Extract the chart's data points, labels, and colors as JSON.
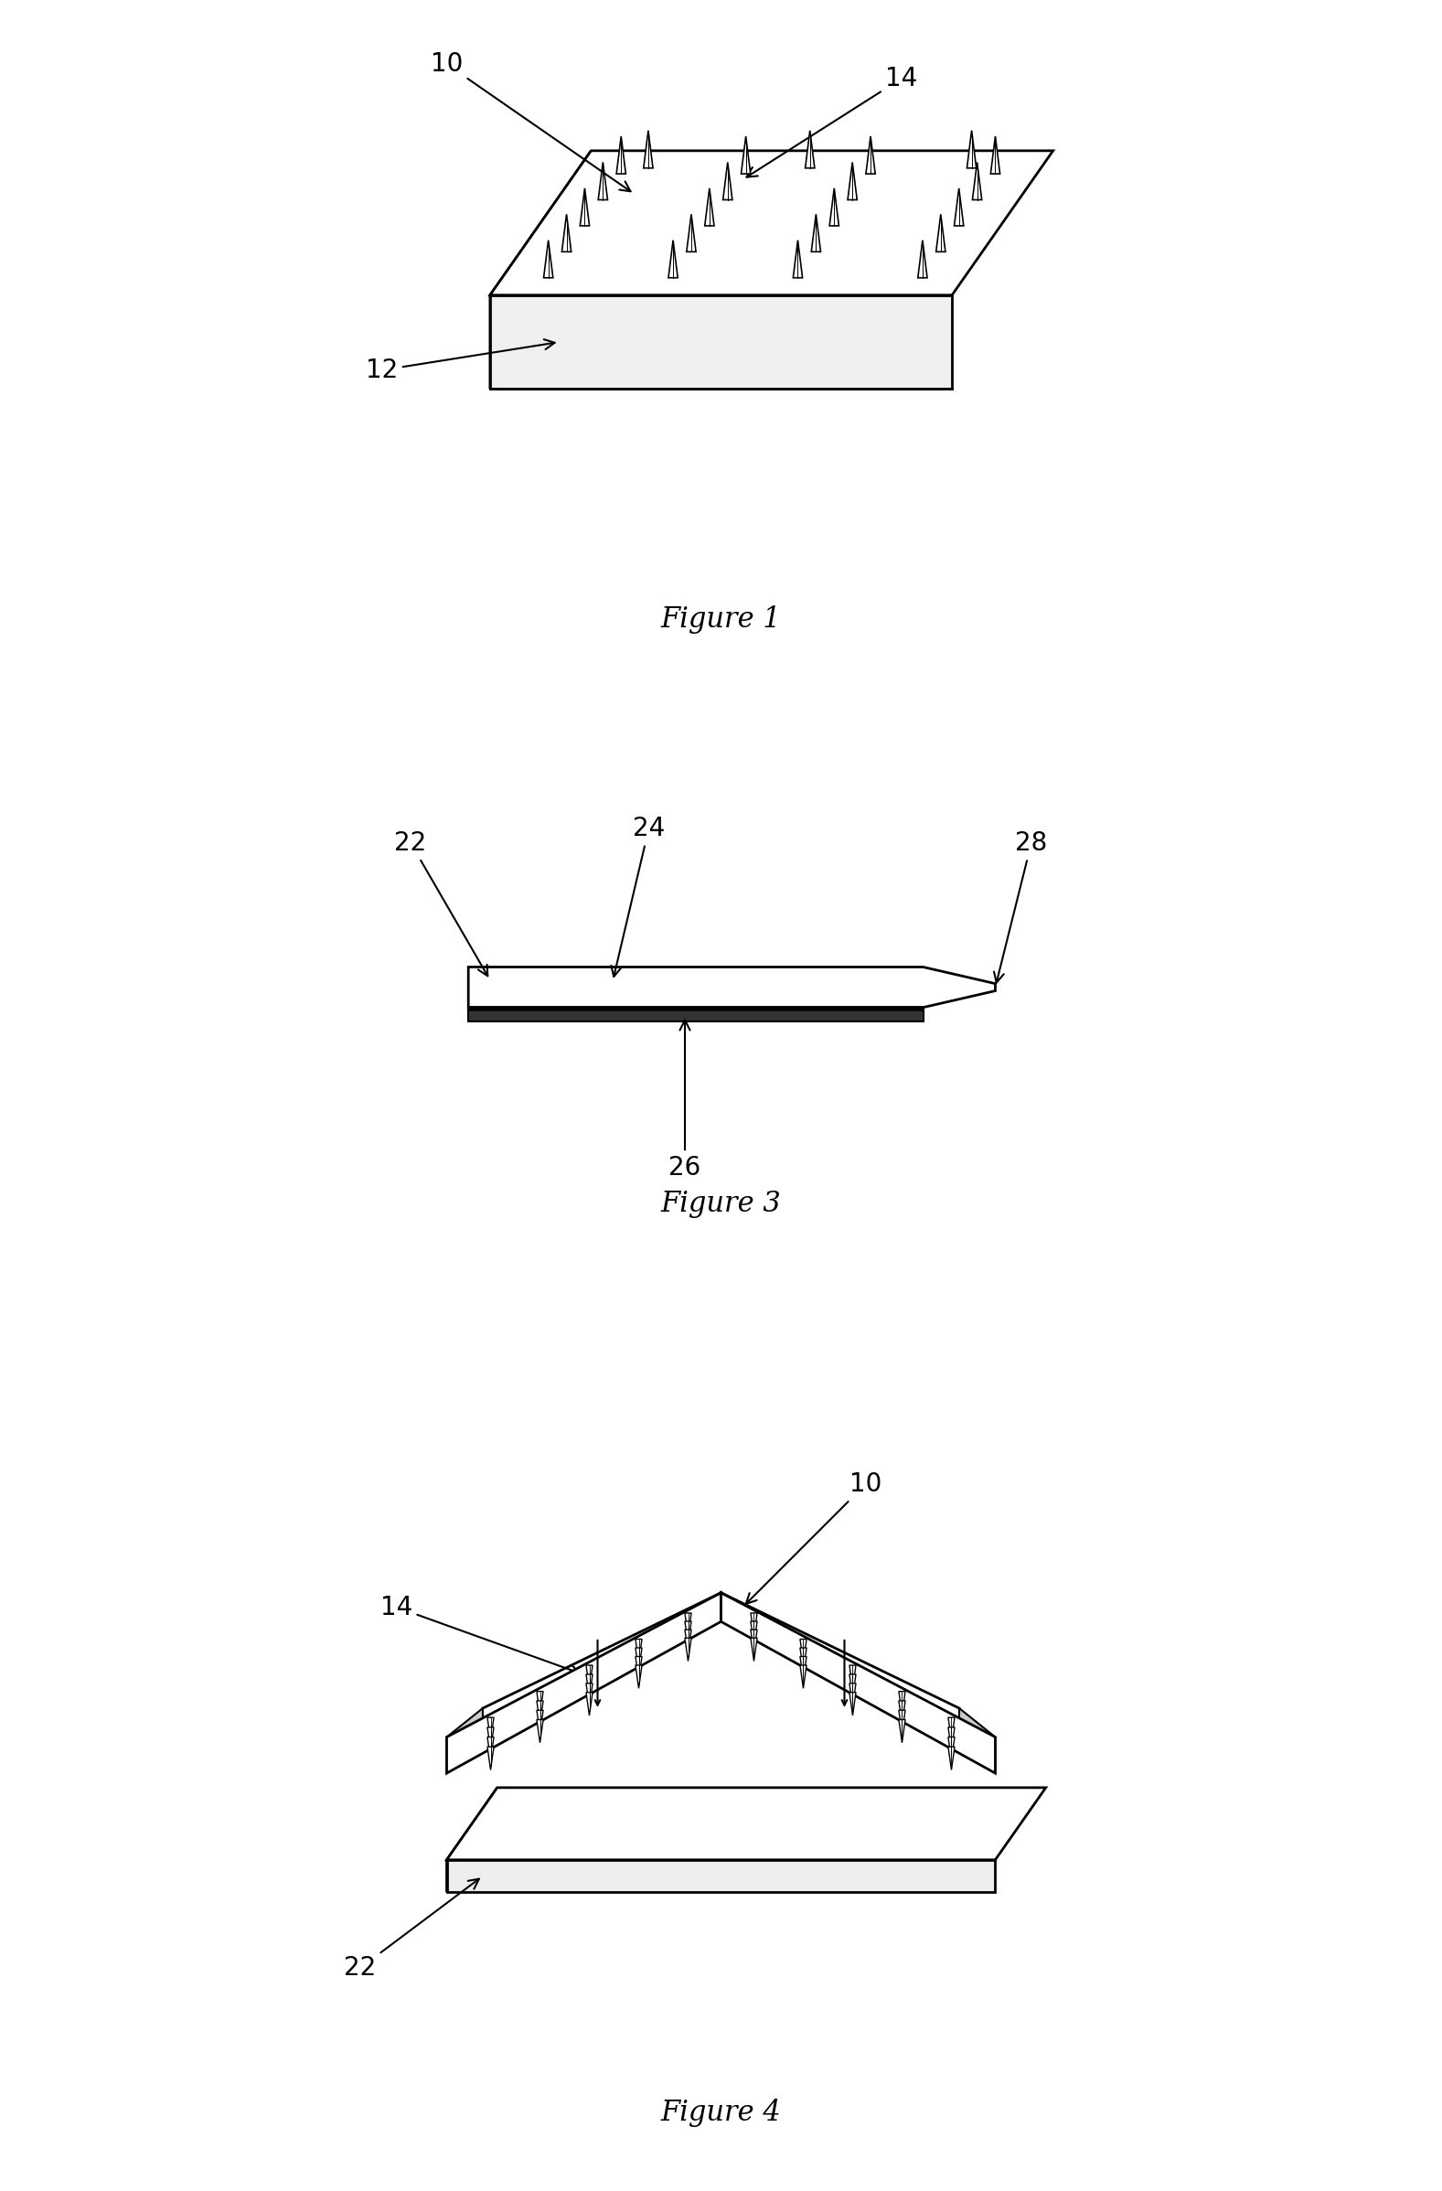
{
  "background_color": "#ffffff",
  "fig_width": 15.77,
  "fig_height": 23.96,
  "title_fontsize": 22,
  "annotation_fontsize": 20,
  "figures": [
    "Figure 1",
    "Figure 3",
    "Figure 4"
  ]
}
